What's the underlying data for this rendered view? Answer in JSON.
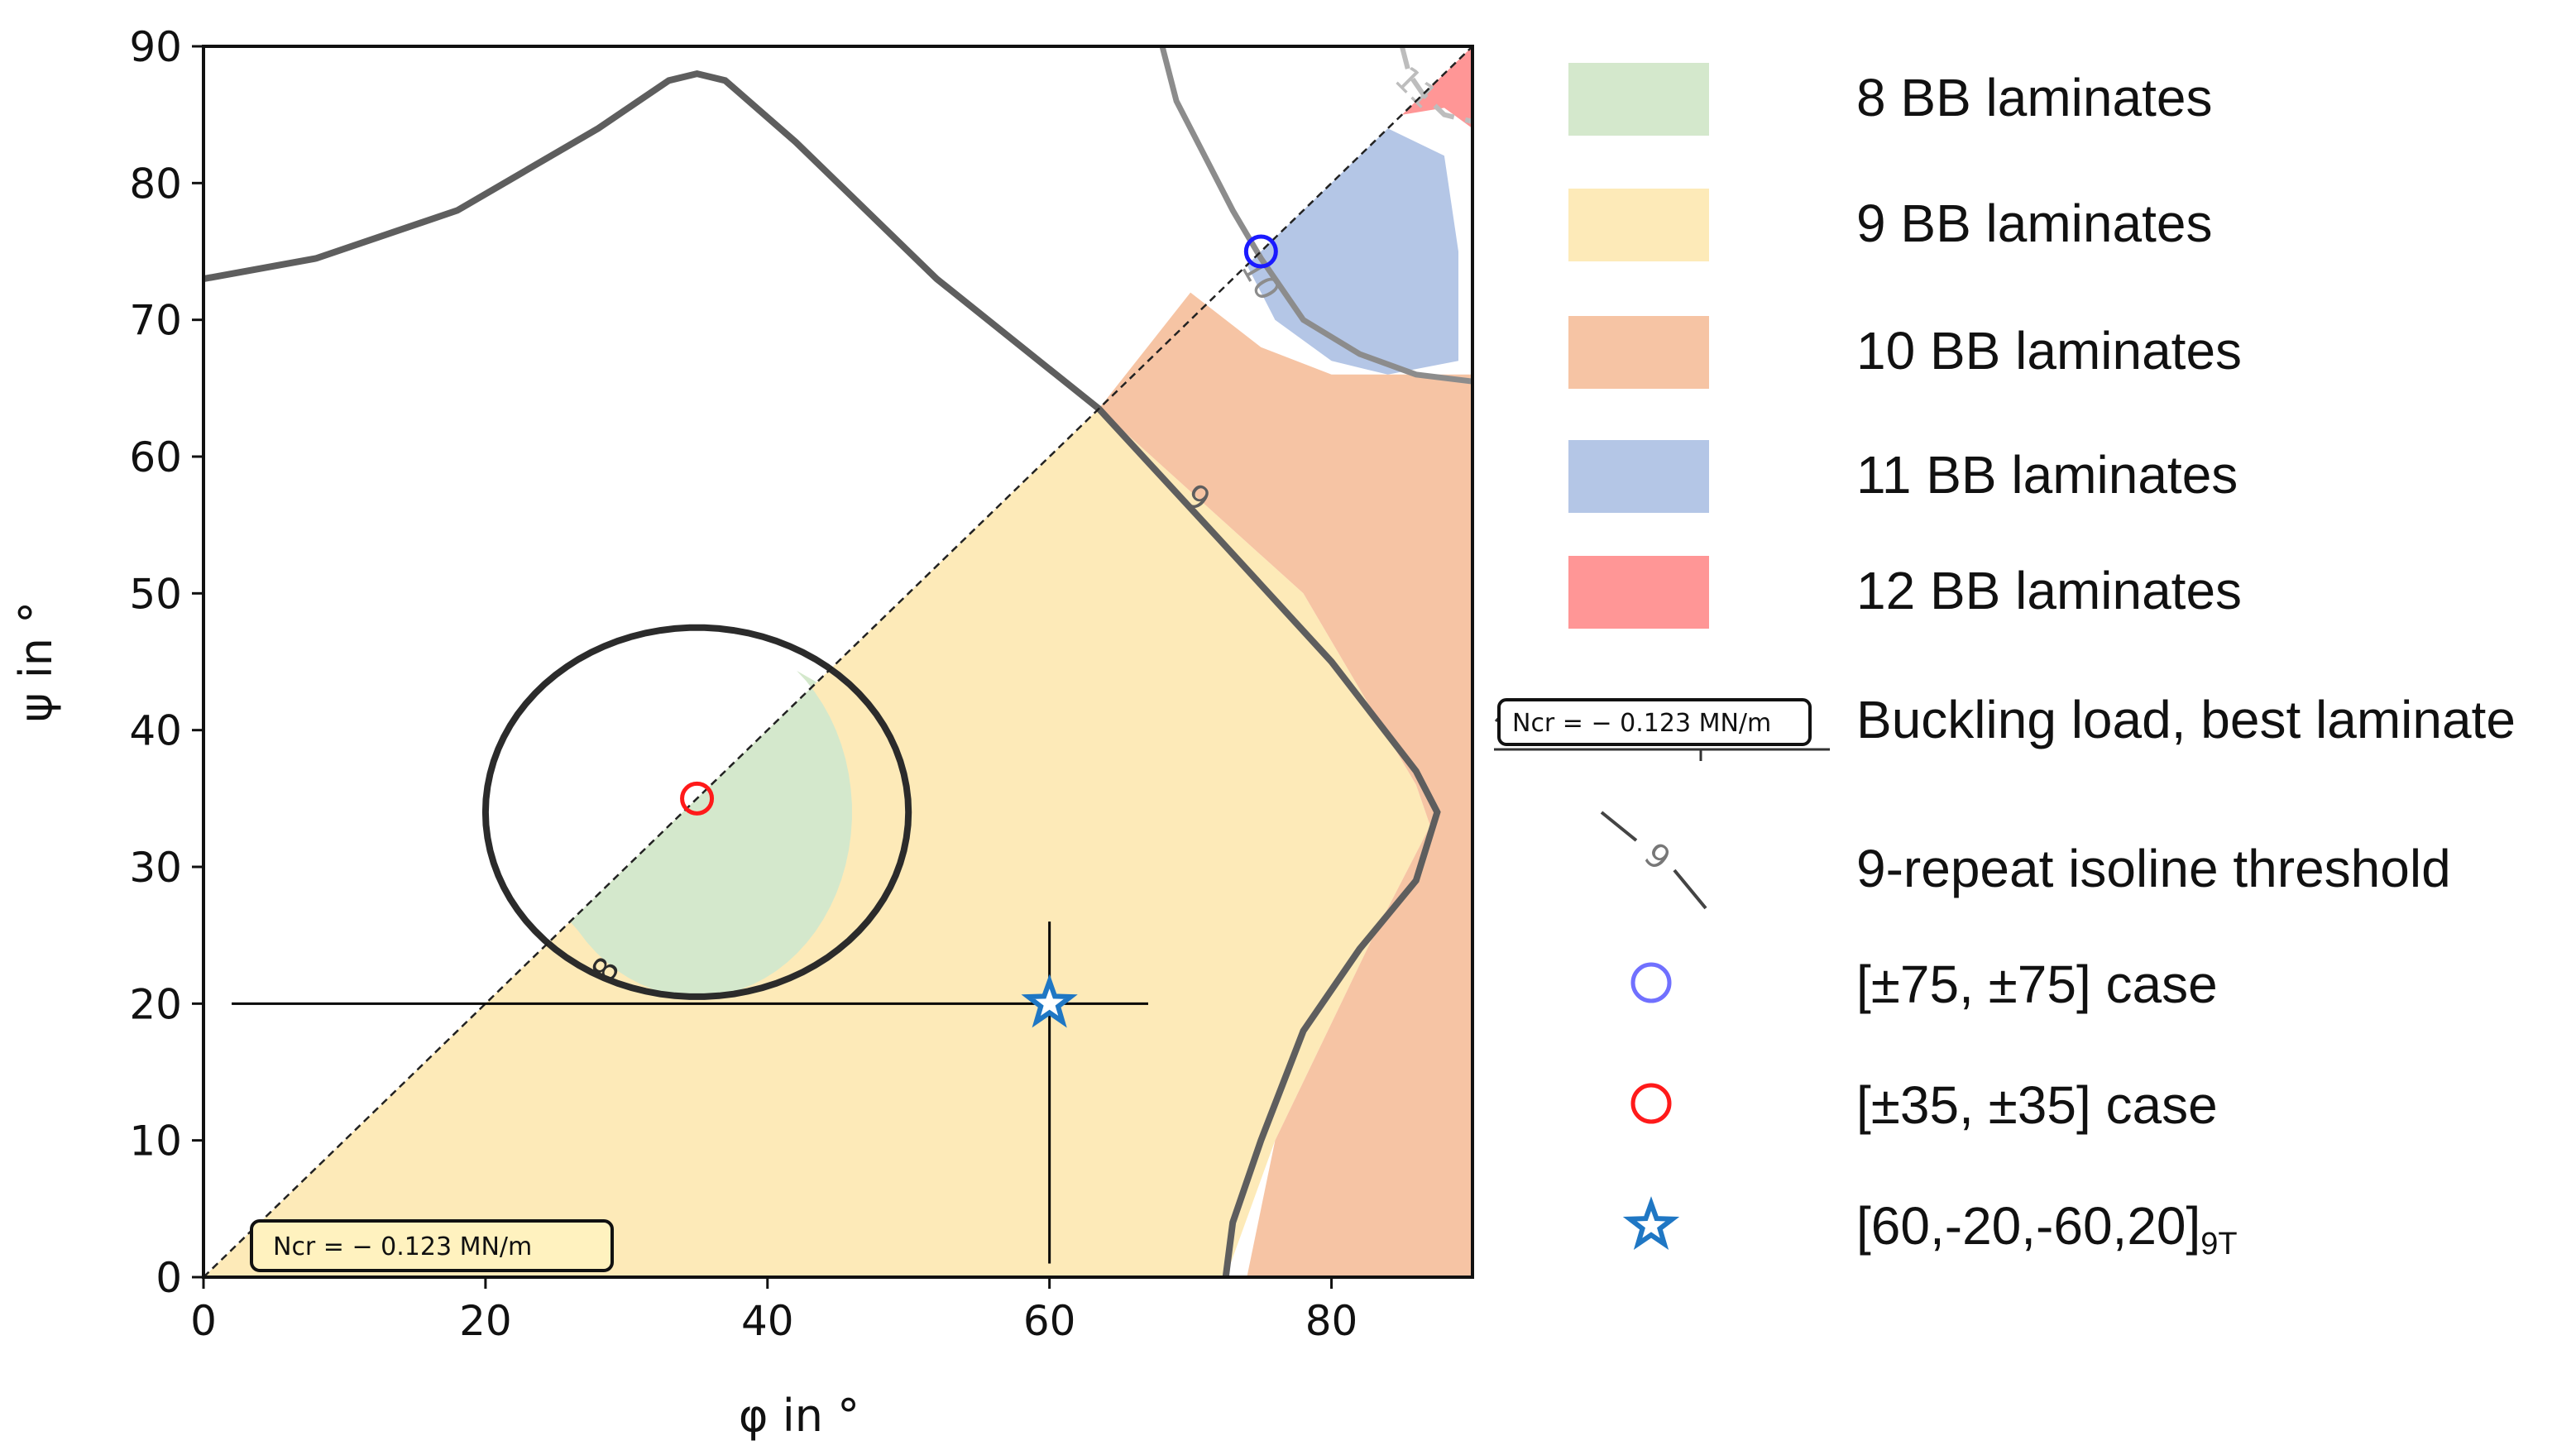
{
  "chart_data": {
    "type": "contour",
    "title": "",
    "xlabel": "φ in °",
    "ylabel": "ψ in °",
    "xlim": [
      0,
      90
    ],
    "ylim": [
      0,
      90
    ],
    "xticks": [
      "0",
      "20",
      "40",
      "60",
      "80"
    ],
    "yticks": [
      "0",
      "10",
      "20",
      "30",
      "40",
      "50",
      "60",
      "70",
      "80",
      "90"
    ],
    "grid": false,
    "legend_position": "right outside",
    "regions": [
      {
        "name": "8 BB laminates",
        "color": "#d4e8cc"
      },
      {
        "name": "9 BB laminates",
        "color": "#fdeab8"
      },
      {
        "name": "10 BB laminates",
        "color": "#f6c4a4"
      },
      {
        "name": "11 BB laminates",
        "color": "#b4c6e6"
      },
      {
        "name": "12 BB laminates",
        "color": "#ff9696"
      }
    ],
    "isolines": [
      {
        "label": "8",
        "color": "#2b2b2b"
      },
      {
        "label": "9",
        "color": "#5e5e5e"
      },
      {
        "label": "10",
        "color": "#8c8c8c"
      },
      {
        "label": "11",
        "color": "#bdbdbd"
      }
    ],
    "diagonal": {
      "from": [
        0,
        0
      ],
      "to": [
        90,
        90
      ],
      "style": "dashed"
    },
    "points": [
      {
        "name": "[±75, ±75] case",
        "x": 75,
        "y": 75,
        "marker": "circle",
        "color": "#1a1aff"
      },
      {
        "name": "[±35, ±35] case",
        "x": 35,
        "y": 35,
        "marker": "circle",
        "color": "#ff1a1a"
      },
      {
        "name": "[60,-20,-60,20]",
        "name_subscript": "9T",
        "x": 60,
        "y": 20,
        "marker": "star",
        "color": "#1f77c4"
      }
    ],
    "crosshair": {
      "x": 60,
      "y": 20,
      "h_from": 2,
      "h_to": 67,
      "v_from": 1,
      "v_to": 26
    },
    "annotation": "N^{cr} = −0.123 MN/m",
    "annotation_text_box": "Ncr = − 0.123 MN/m",
    "legend": {
      "items": [
        "8 BB laminates",
        "9 BB laminates",
        "10 BB laminates",
        "11 BB laminates",
        "12 BB laminates",
        "Buckling load, best laminate",
        "9-repeat isoline threshold",
        "[±75, ±75] case",
        "[±35, ±35] case",
        "[60,-20,-60,20]"
      ],
      "last_item_subscript": "9T",
      "buckling_box_text": "Ncr = − 0.123 MN/m",
      "isoline_sample_label": "9"
    }
  }
}
